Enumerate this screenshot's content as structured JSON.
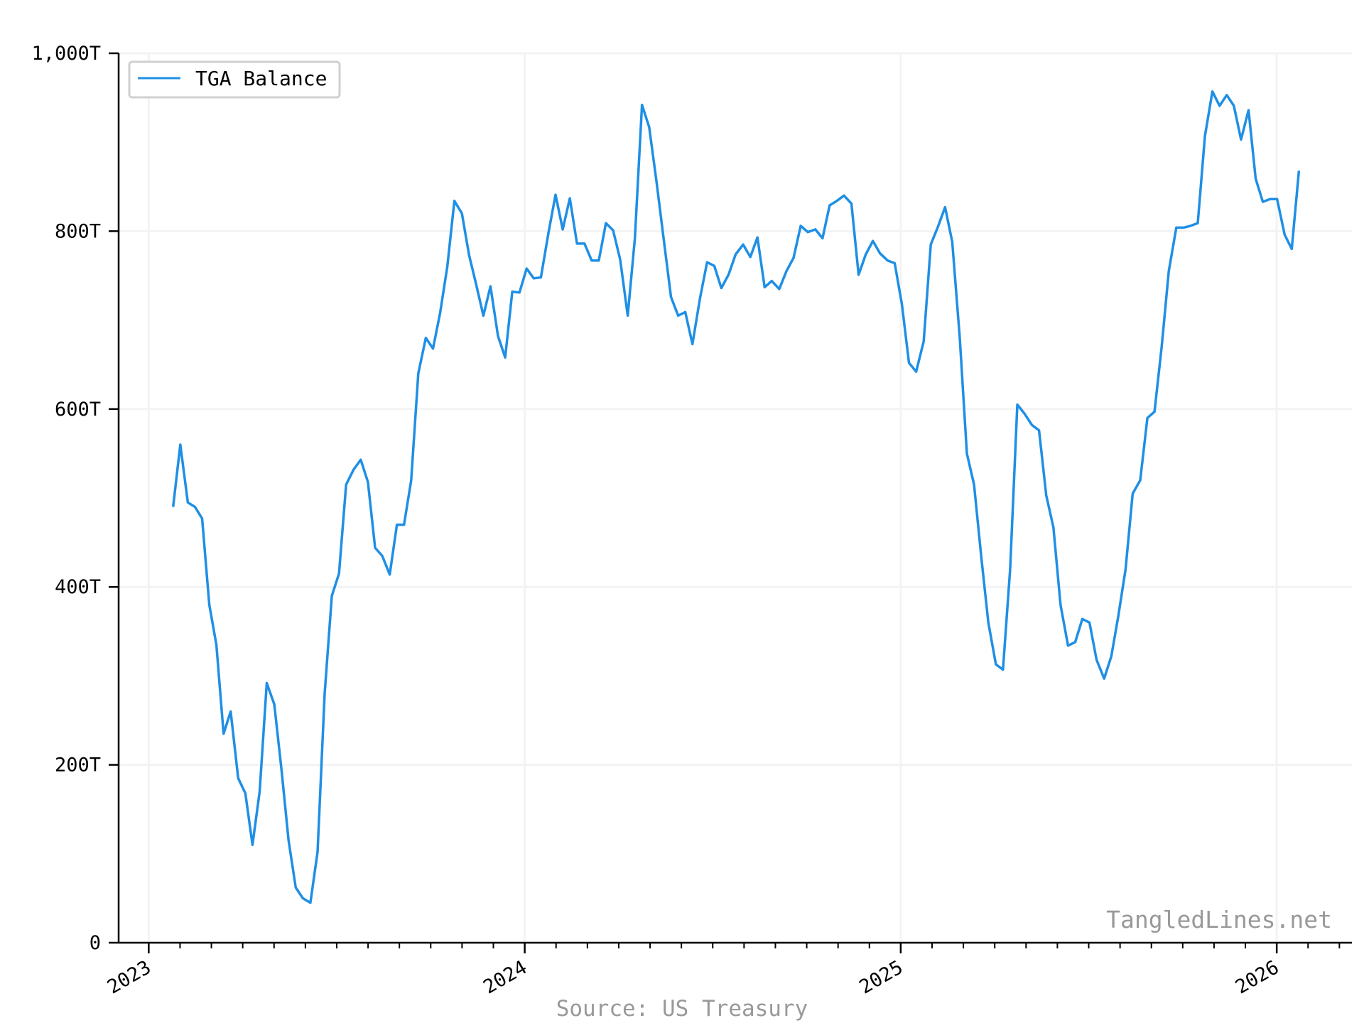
{
  "chart_data": {
    "type": "line",
    "title": "",
    "xlabel": "",
    "ylabel": "",
    "ylim": [
      0,
      1000
    ],
    "y_unit_suffix": "T",
    "y_ticks": [
      0,
      200,
      400,
      600,
      800,
      1000
    ],
    "y_tick_labels": [
      "0",
      "200T",
      "400T",
      "600T",
      "800T",
      "1,000T"
    ],
    "xlim": [
      2022.92,
      2026.2
    ],
    "x_ticks": [
      2023,
      2024,
      2025,
      2026
    ],
    "x_tick_labels": [
      "2023",
      "2024",
      "2025",
      "2026"
    ],
    "grid": true,
    "legend_position": "top-left",
    "series": [
      {
        "name": "TGA Balance",
        "color": "#1f8fe5",
        "x": [
          2023.065,
          2023.084,
          2023.104,
          2023.123,
          2023.142,
          2023.161,
          2023.18,
          2023.199,
          2023.218,
          2023.238,
          2023.257,
          2023.276,
          2023.295,
          2023.314,
          2023.334,
          2023.353,
          2023.372,
          2023.391,
          2023.41,
          2023.43,
          2023.449,
          2023.468,
          2023.487,
          2023.506,
          2023.525,
          2023.545,
          2023.564,
          2023.583,
          2023.602,
          2023.621,
          2023.641,
          2023.66,
          2023.679,
          2023.698,
          2023.717,
          2023.737,
          2023.756,
          2023.775,
          2023.794,
          2023.813,
          2023.833,
          2023.852,
          2023.871,
          2023.89,
          2023.909,
          2023.929,
          2023.948,
          2023.967,
          2023.986,
          2024.005,
          2024.024,
          2024.043,
          2024.063,
          2024.082,
          2024.101,
          2024.12,
          2024.139,
          2024.159,
          2024.178,
          2024.197,
          2024.216,
          2024.235,
          2024.254,
          2024.274,
          2024.293,
          2024.312,
          2024.331,
          2024.35,
          2024.37,
          2024.389,
          2024.408,
          2024.427,
          2024.446,
          2024.466,
          2024.485,
          2024.504,
          2024.523,
          2024.542,
          2024.561,
          2024.581,
          2024.6,
          2024.619,
          2024.638,
          2024.657,
          2024.677,
          2024.696,
          2024.715,
          2024.734,
          2024.753,
          2024.773,
          2024.792,
          2024.811,
          2024.83,
          2024.849,
          2024.869,
          2024.888,
          2024.907,
          2024.926,
          2024.945,
          2024.965,
          2024.984,
          2025.003,
          2025.022,
          2025.041,
          2025.061,
          2025.08,
          2025.099,
          2025.118,
          2025.137,
          2025.157,
          2025.176,
          2025.195,
          2025.214,
          2025.233,
          2025.253,
          2025.272,
          2025.291,
          2025.31,
          2025.329,
          2025.349,
          2025.368,
          2025.387,
          2025.406,
          2025.425,
          2025.445,
          2025.464,
          2025.483,
          2025.502,
          2025.521,
          2025.541,
          2025.56,
          2025.579,
          2025.598,
          2025.617,
          2025.637,
          2025.656,
          2025.675,
          2025.694,
          2025.713,
          2025.733,
          2025.752,
          2025.771,
          2025.79,
          2025.809,
          2025.829,
          2025.848,
          2025.867,
          2025.886,
          2025.905,
          2025.925,
          2025.944,
          2025.963,
          2025.982,
          2026.001,
          2026.021,
          2026.04,
          2026.059
        ],
        "values": [
          490,
          560,
          495,
          490,
          477,
          380,
          335,
          235,
          260,
          185,
          168,
          110,
          170,
          292,
          268,
          195,
          115,
          62,
          50,
          45,
          102,
          280,
          390,
          415,
          515,
          532,
          543,
          518,
          444,
          435,
          414,
          470,
          470,
          520,
          640,
          680,
          668,
          708,
          760,
          834,
          820,
          773,
          740,
          705,
          738,
          682,
          658,
          732,
          731,
          758,
          747,
          748,
          798,
          841,
          802,
          837,
          786,
          786,
          767,
          767,
          809,
          801,
          768,
          705,
          792,
          942,
          917,
          857,
          790,
          726,
          705,
          709,
          673,
          724,
          765,
          761,
          736,
          751,
          774,
          785,
          771,
          793,
          737,
          744,
          735,
          755,
          770,
          806,
          799,
          802,
          792,
          829,
          834,
          840,
          831,
          751,
          774,
          789,
          775,
          767,
          764,
          718,
          652,
          642,
          676,
          785,
          805,
          827,
          788,
          680,
          550,
          515,
          435,
          360,
          313,
          307,
          420,
          605,
          595,
          582,
          576,
          503,
          467,
          380,
          334,
          338,
          364,
          360,
          318,
          297,
          322,
          368,
          420,
          505,
          520,
          590,
          597,
          670,
          755,
          804,
          804,
          806,
          809,
          907,
          957,
          941,
          953,
          941,
          903,
          936,
          859,
          833,
          836,
          836,
          796,
          780,
          868
        ]
      }
    ]
  },
  "legend": {
    "label": "TGA Balance"
  },
  "watermark": "TangledLines.net",
  "source_note": "Source: US Treasury"
}
